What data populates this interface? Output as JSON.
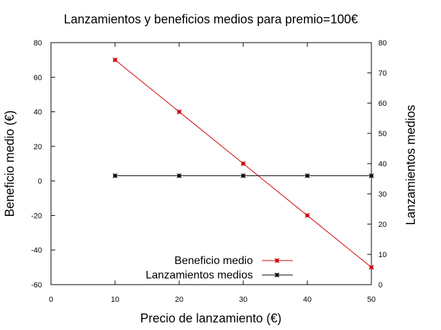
{
  "chart_data": {
    "type": "line",
    "title": "Lanzamientos y beneficios medios para premio=100€",
    "xlabel": "Precio de lanzamiento (€)",
    "ylabel": "Beneficio medio (€)",
    "y2label": "Lanzamientos medios",
    "xlim": [
      0,
      50
    ],
    "ylim": [
      -60,
      80
    ],
    "y2lim": [
      0,
      80
    ],
    "xticks": [
      0,
      10,
      20,
      30,
      40,
      50
    ],
    "yticks": [
      -60,
      -40,
      -20,
      0,
      20,
      40,
      60,
      80
    ],
    "y2ticks": [
      0,
      10,
      20,
      30,
      40,
      50,
      60,
      70,
      80
    ],
    "grid": false,
    "legend_position": "bottom-right",
    "series": [
      {
        "name": "Beneficio medio",
        "axis": "y",
        "color": "#cc0000",
        "x": [
          10,
          20,
          30,
          40,
          50
        ],
        "values": [
          70,
          40,
          10,
          -20,
          -50
        ]
      },
      {
        "name": "Lanzamientos medios",
        "axis": "y2",
        "color": "#000000",
        "x": [
          10,
          20,
          30,
          40,
          50
        ],
        "values": [
          36,
          36,
          36,
          36,
          36
        ]
      }
    ]
  }
}
